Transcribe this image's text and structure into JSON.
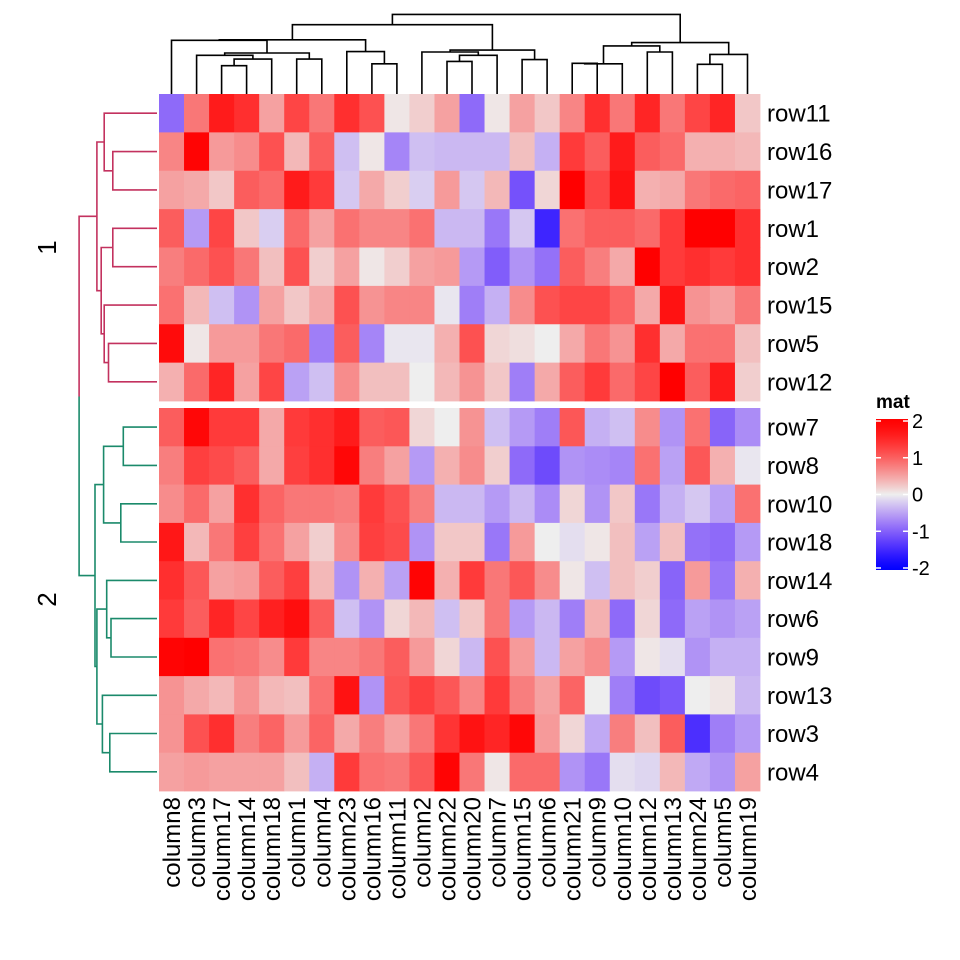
{
  "chart_data": {
    "type": "heatmap",
    "title": "",
    "legend": {
      "title": "mat",
      "placement": "right",
      "ticks": [
        2,
        1,
        0,
        -1,
        -2
      ],
      "range": [
        -2,
        2
      ],
      "colors": {
        "low": "#0000FF",
        "mid": "#EEEEEE",
        "high": "#FF0000"
      }
    },
    "columns": [
      "column8",
      "column3",
      "column17",
      "column14",
      "column18",
      "column1",
      "column4",
      "column23",
      "column16",
      "column11",
      "column2",
      "column22",
      "column20",
      "column7",
      "column15",
      "column6",
      "column21",
      "column9",
      "column10",
      "column12",
      "column13",
      "column24",
      "column5",
      "column19"
    ],
    "row_slices": [
      {
        "label": "1",
        "dendrogram_color": "#C3325F",
        "rows": [
          "row11",
          "row16",
          "row17",
          "row1",
          "row2",
          "row15",
          "row5",
          "row12"
        ]
      },
      {
        "label": "2",
        "dendrogram_color": "#1B8A6B",
        "rows": [
          "row7",
          "row8",
          "row10",
          "row18",
          "row14",
          "row6",
          "row9",
          "row13",
          "row3",
          "row4"
        ]
      }
    ],
    "values": {
      "row11": [
        -0.9,
        0.8,
        1.6,
        1.4,
        0.5,
        1.2,
        0.8,
        1.4,
        1.1,
        0.05,
        0.2,
        0.5,
        -0.9,
        0.05,
        0.5,
        0.25,
        0.7,
        1.4,
        0.8,
        1.5,
        0.8,
        1.2,
        1.5,
        0.25
      ],
      "row16": [
        0.7,
        1.9,
        0.55,
        0.65,
        1.1,
        0.35,
        1.0,
        -0.3,
        0.05,
        -0.7,
        -0.3,
        -0.35,
        -0.35,
        -0.35,
        0.3,
        -0.4,
        1.3,
        1.0,
        1.6,
        1.0,
        0.9,
        0.4,
        0.4,
        0.35
      ],
      "row17": [
        0.5,
        0.45,
        0.25,
        1.0,
        0.9,
        1.6,
        1.3,
        -0.25,
        0.45,
        0.2,
        -0.2,
        0.55,
        -0.25,
        0.35,
        -1.1,
        0.15,
        2.0,
        1.2,
        1.7,
        0.4,
        0.45,
        0.8,
        0.9,
        0.95
      ],
      "row1": [
        1.0,
        -0.55,
        1.2,
        0.25,
        -0.2,
        0.9,
        0.5,
        0.85,
        0.7,
        0.7,
        0.85,
        -0.35,
        -0.35,
        -0.8,
        -0.25,
        -1.5,
        0.85,
        1.0,
        1.0,
        0.9,
        1.3,
        2.0,
        2.0,
        1.4
      ],
      "row2": [
        0.75,
        0.9,
        1.1,
        0.8,
        0.3,
        1.1,
        0.2,
        0.5,
        0.05,
        0.2,
        0.5,
        0.55,
        -0.55,
        -1.0,
        -0.6,
        -0.85,
        1.0,
        0.75,
        0.45,
        2.0,
        1.3,
        1.4,
        1.3,
        1.4
      ],
      "row15": [
        0.85,
        0.35,
        -0.3,
        -0.6,
        0.5,
        0.25,
        0.45,
        1.1,
        0.6,
        0.7,
        0.7,
        -0.05,
        -0.75,
        -0.4,
        0.65,
        1.1,
        1.2,
        1.2,
        0.95,
        0.45,
        1.7,
        0.6,
        0.5,
        0.8
      ],
      "row5": [
        1.8,
        0.05,
        0.55,
        0.55,
        0.8,
        0.9,
        -0.75,
        1.0,
        -0.7,
        -0.05,
        -0.05,
        0.4,
        1.1,
        0.15,
        0.1,
        0.0,
        0.45,
        0.8,
        0.6,
        1.4,
        0.45,
        0.85,
        0.85,
        0.3
      ],
      "row12": [
        0.4,
        0.9,
        1.5,
        0.5,
        1.2,
        -0.5,
        -0.3,
        0.65,
        0.3,
        0.3,
        0.0,
        0.35,
        0.6,
        0.25,
        -0.75,
        0.45,
        1.0,
        1.3,
        0.9,
        1.2,
        2.0,
        1.0,
        1.6,
        0.2
      ],
      "row7": [
        1.0,
        1.85,
        1.3,
        1.3,
        0.45,
        1.3,
        1.4,
        1.6,
        1.0,
        1.05,
        0.15,
        0.0,
        0.6,
        -0.3,
        -0.55,
        -0.75,
        1.05,
        -0.4,
        -0.3,
        0.65,
        -0.6,
        0.85,
        -0.95,
        -0.65
      ],
      "row8": [
        0.75,
        1.25,
        1.15,
        1.0,
        0.45,
        1.25,
        1.4,
        1.85,
        0.75,
        0.5,
        -0.55,
        0.4,
        0.65,
        0.2,
        -0.9,
        -1.15,
        -0.6,
        -0.65,
        -0.7,
        0.85,
        -0.5,
        1.05,
        0.4,
        -0.05
      ],
      "row10": [
        0.65,
        0.9,
        0.5,
        1.4,
        0.95,
        0.8,
        0.8,
        0.75,
        1.3,
        1.1,
        0.75,
        -0.35,
        -0.35,
        -0.55,
        -0.35,
        -0.65,
        0.15,
        -0.6,
        0.25,
        -0.8,
        -0.4,
        -0.25,
        -0.5,
        0.85
      ],
      "row18": [
        1.65,
        0.35,
        0.8,
        1.25,
        0.85,
        0.5,
        0.2,
        0.65,
        1.25,
        1.15,
        -0.6,
        0.25,
        0.25,
        -0.8,
        0.55,
        0.0,
        -0.1,
        0.05,
        0.3,
        -0.5,
        0.3,
        -0.85,
        -0.9,
        -0.55
      ],
      "row14": [
        1.4,
        1.05,
        0.5,
        0.55,
        1.0,
        1.25,
        0.35,
        -0.6,
        0.4,
        -0.5,
        1.9,
        0.4,
        1.3,
        0.8,
        1.05,
        0.65,
        0.05,
        -0.3,
        0.3,
        0.2,
        -0.95,
        0.55,
        -0.8,
        0.4
      ],
      "row6": [
        1.3,
        1.0,
        1.5,
        1.2,
        1.55,
        1.75,
        1.0,
        -0.3,
        -0.6,
        0.15,
        0.35,
        -0.3,
        0.25,
        0.8,
        -0.55,
        -0.35,
        -0.75,
        0.4,
        -0.9,
        0.15,
        -0.9,
        -0.5,
        -0.6,
        -0.5
      ],
      "row9": [
        1.9,
        2.0,
        0.85,
        0.8,
        0.65,
        1.3,
        0.7,
        0.7,
        0.8,
        1.0,
        0.55,
        0.15,
        -0.35,
        1.1,
        0.55,
        -0.35,
        0.5,
        0.65,
        -0.55,
        0.05,
        -0.1,
        -0.6,
        -0.4,
        -0.4
      ],
      "row13": [
        0.6,
        0.45,
        0.35,
        0.6,
        0.35,
        0.3,
        0.85,
        1.7,
        -0.6,
        1.05,
        1.25,
        1.05,
        0.7,
        1.3,
        0.75,
        0.5,
        0.95,
        0.0,
        -0.75,
        -1.15,
        -1.05,
        0.0,
        0.05,
        -0.35
      ],
      "row3": [
        0.6,
        1.1,
        1.4,
        0.75,
        0.95,
        0.55,
        0.95,
        0.45,
        0.75,
        0.5,
        0.8,
        1.35,
        1.7,
        1.5,
        1.85,
        0.55,
        0.15,
        -0.45,
        0.75,
        0.3,
        1.0,
        -1.4,
        -0.75,
        -0.55
      ],
      "row4": [
        0.5,
        0.55,
        0.5,
        0.5,
        0.5,
        0.3,
        -0.4,
        1.3,
        0.85,
        0.8,
        1.05,
        1.9,
        0.8,
        0.05,
        0.9,
        0.9,
        -0.6,
        -0.8,
        -0.1,
        -0.15,
        0.35,
        -0.45,
        -0.6,
        0.5
      ]
    },
    "column_dendrogram": {
      "merges": [
        {
          "id": "a",
          "left": "c2",
          "right": "c3",
          "height": 0.58
        },
        {
          "id": "b",
          "left": "a",
          "right": "c4",
          "height": 0.72
        },
        {
          "id": "c",
          "left": "c1",
          "right": "b",
          "height": 0.8
        },
        {
          "id": "d",
          "left": "c5",
          "right": "c6",
          "height": 0.72
        },
        {
          "id": "e",
          "left": "c",
          "right": "d",
          "height": 0.85
        },
        {
          "id": "f",
          "left": "c0",
          "right": "e",
          "height": 1.12
        },
        {
          "id": "g",
          "left": "c8",
          "right": "c9",
          "height": 0.62
        },
        {
          "id": "h",
          "left": "c7",
          "right": "g",
          "height": 0.88
        },
        {
          "id": "i",
          "left": "f",
          "right": "h",
          "height": 1.13
        },
        {
          "id": "j",
          "left": "c11",
          "right": "c12",
          "height": 0.67
        },
        {
          "id": "k",
          "left": "j",
          "right": "c13",
          "height": 0.8
        },
        {
          "id": "l",
          "left": "c10",
          "right": "k",
          "height": 0.87
        },
        {
          "id": "m",
          "left": "c14",
          "right": "c15",
          "height": 0.71
        },
        {
          "id": "n",
          "left": "l",
          "right": "m",
          "height": 0.91
        },
        {
          "id": "o",
          "left": "i",
          "right": "n",
          "height": 1.45
        },
        {
          "id": "p",
          "left": "c16",
          "right": "c17",
          "height": 0.63
        },
        {
          "id": "q",
          "left": "p",
          "right": "c18",
          "height": 0.62
        },
        {
          "id": "r",
          "left": "c19",
          "right": "c20",
          "height": 0.87
        },
        {
          "id": "s",
          "left": "q",
          "right": "r",
          "height": 1.0
        },
        {
          "id": "t",
          "left": "c21",
          "right": "c22",
          "height": 0.61
        },
        {
          "id": "u",
          "left": "t",
          "right": "c23",
          "height": 0.82
        },
        {
          "id": "v",
          "left": "s",
          "right": "u",
          "height": 1.07
        },
        {
          "id": "w",
          "left": "o",
          "right": "v",
          "height": 1.67
        }
      ],
      "max_height": 1.72
    },
    "row_dendrogram": {
      "merges": [
        {
          "id": "A",
          "left": "r1",
          "right": "r2",
          "height": 0.72
        },
        {
          "id": "B",
          "left": "r0",
          "right": "A",
          "height": 0.86
        },
        {
          "id": "C",
          "left": "r3",
          "right": "r4",
          "height": 0.72
        },
        {
          "id": "D",
          "left": "r6",
          "right": "r7",
          "height": 0.79
        },
        {
          "id": "E",
          "left": "r5",
          "right": "D",
          "height": 0.86
        },
        {
          "id": "F",
          "left": "C",
          "right": "E",
          "height": 0.91
        },
        {
          "id": "G",
          "left": "B",
          "right": "F",
          "height": 0.98
        },
        {
          "id": "H",
          "left": "r8",
          "right": "r9",
          "height": 0.55
        },
        {
          "id": "I",
          "left": "r10",
          "right": "r11",
          "height": 0.59
        },
        {
          "id": "J",
          "left": "H",
          "right": "I",
          "height": 0.87
        },
        {
          "id": "K",
          "left": "r13",
          "right": "r14",
          "height": 0.75
        },
        {
          "id": "L",
          "left": "r12",
          "right": "K",
          "height": 0.82
        },
        {
          "id": "M",
          "left": "r16",
          "right": "r17",
          "height": 0.77
        },
        {
          "id": "N",
          "left": "r15",
          "right": "M",
          "height": 0.89
        },
        {
          "id": "O",
          "left": "L",
          "right": "N",
          "height": 0.98
        },
        {
          "id": "P",
          "left": "J",
          "right": "O",
          "height": 1.01
        },
        {
          "id": "Q",
          "left": "G",
          "right": "P",
          "height": 1.27
        }
      ],
      "max_height": 1.32
    }
  }
}
